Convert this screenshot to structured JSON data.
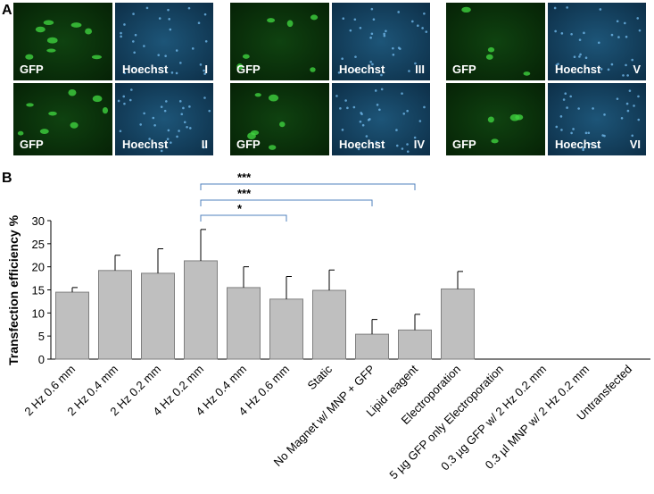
{
  "panel_a": {
    "label": "A",
    "images": [
      {
        "gfp": "GFP",
        "hoechst": "Hoechst",
        "numeral": "I"
      },
      {
        "gfp": "GFP",
        "hoechst": "Hoechst",
        "numeral": "II"
      },
      {
        "gfp": "GFP",
        "hoechst": "Hoechst",
        "numeral": "III"
      },
      {
        "gfp": "GFP",
        "hoechst": "Hoechst",
        "numeral": "IV"
      },
      {
        "gfp": "GFP",
        "hoechst": "Hoechst",
        "numeral": "V"
      },
      {
        "gfp": "GFP",
        "hoechst": "Hoechst",
        "numeral": "VI"
      }
    ]
  },
  "chart_data": {
    "type": "bar",
    "panel_label": "B",
    "y_label": "Transfection efficiency %",
    "categories": [
      "2 Hz 0.6 mm",
      "2 Hz 0.4 mm",
      "2 Hz 0.2 mm",
      "4 Hz 0.2 mm",
      "4 Hz 0.4 mm",
      "4 Hz 0.6 mm",
      "Static",
      "No Magnet w/ MNP + GFP",
      "Lipid reagent",
      "Electroporation",
      "5 µg GFP only Electroporation",
      "0.3 µg GFP w/ 2 Hz 0.2 mm",
      "0.3 µl MNP w/ 2 Hz 0.2 mm",
      "Untransfected"
    ],
    "values": [
      14.5,
      19.2,
      18.6,
      21.3,
      15.5,
      13.0,
      14.9,
      5.4,
      6.3,
      15.2,
      0,
      0,
      0,
      0
    ],
    "errors": [
      1.0,
      3.3,
      5.3,
      6.8,
      4.5,
      4.9,
      4.4,
      3.2,
      3.4,
      3.8,
      0,
      0,
      0,
      0
    ],
    "color": "#bfbfbf",
    "ylim": [
      0,
      30
    ],
    "yticks": [
      0,
      5,
      10,
      15,
      20,
      25,
      30
    ],
    "significance": [
      {
        "from": "4 Hz 0.2 mm",
        "to": "Lipid reagent",
        "label": "***"
      },
      {
        "from": "4 Hz 0.2 mm",
        "to": "No Magnet w/ MNP + GFP",
        "label": "***"
      },
      {
        "from": "4 Hz 0.2 mm",
        "to": "4 Hz 0.6 mm",
        "label": "*"
      }
    ]
  }
}
